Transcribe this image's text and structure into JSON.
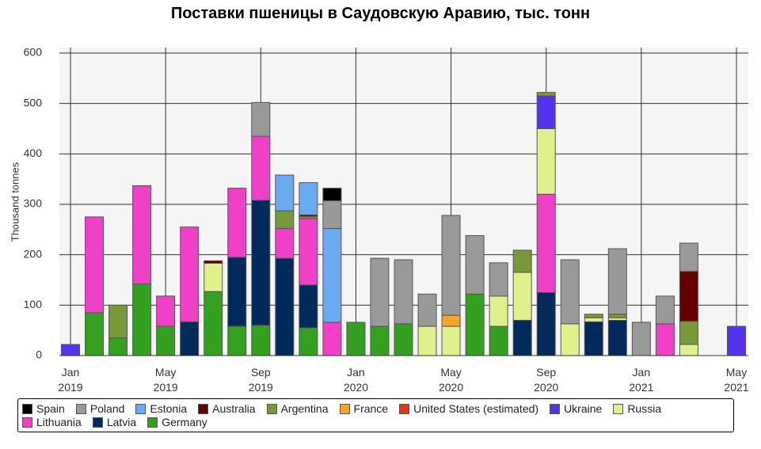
{
  "chart_data": {
    "type": "bar",
    "stacked": true,
    "title": "Поставки пшеницы в Саудовскую Аравию, тыс. тонн",
    "y_label": "Thousand tonnes",
    "categories": [
      "Jan 2019",
      null,
      null,
      null,
      "May 2019",
      null,
      null,
      null,
      "Sep 2019",
      null,
      null,
      null,
      "Jan 2020",
      null,
      null,
      null,
      "May 2020",
      null,
      null,
      null,
      "Sep 2020",
      null,
      null,
      null,
      "Jan 2021",
      null,
      null,
      null,
      "May 2021"
    ],
    "ylim": [
      0,
      600
    ],
    "yticks": [
      0,
      100,
      200,
      300,
      400,
      500,
      600
    ],
    "grid": true,
    "legend": "bottom",
    "series": [
      {
        "name": "Spain",
        "color": "#000000",
        "values": [
          0,
          0,
          0,
          0,
          0,
          0,
          0,
          0,
          0,
          0,
          0,
          25,
          0,
          0,
          0,
          0,
          0,
          0,
          0,
          0,
          0,
          0,
          0,
          0,
          0,
          0,
          0,
          0,
          0
        ]
      },
      {
        "name": "Poland",
        "color": "#999999",
        "values": [
          0,
          0,
          0,
          0,
          0,
          0,
          0,
          0,
          67,
          0,
          0,
          55,
          0,
          135,
          127,
          64,
          198,
          116,
          66,
          0,
          0,
          127,
          0,
          130,
          66,
          55,
          56,
          0,
          0
        ]
      },
      {
        "name": "Estonia",
        "color": "#6aaaf0",
        "values": [
          0,
          0,
          0,
          0,
          0,
          0,
          0,
          0,
          0,
          71,
          64,
          186,
          0,
          0,
          0,
          0,
          0,
          0,
          0,
          0,
          0,
          0,
          0,
          0,
          0,
          0,
          0,
          0,
          0
        ]
      },
      {
        "name": "Australia",
        "color": "#660000",
        "values": [
          0,
          0,
          0,
          0,
          0,
          0,
          5,
          0,
          0,
          0,
          3,
          0,
          0,
          0,
          0,
          0,
          0,
          0,
          0,
          0,
          0,
          0,
          0,
          0,
          0,
          0,
          99,
          0,
          0
        ]
      },
      {
        "name": "Argentina",
        "color": "#77993a",
        "values": [
          0,
          0,
          65,
          0,
          0,
          0,
          0,
          0,
          0,
          35,
          4,
          0,
          0,
          0,
          0,
          0,
          0,
          0,
          0,
          44,
          7,
          0,
          7,
          7,
          0,
          0,
          46,
          0,
          0
        ]
      },
      {
        "name": "France",
        "color": "#f5a623",
        "values": [
          0,
          0,
          0,
          0,
          0,
          0,
          0,
          0,
          0,
          0,
          0,
          0,
          0,
          0,
          0,
          0,
          22,
          0,
          0,
          0,
          0,
          0,
          0,
          0,
          0,
          0,
          0,
          0,
          0
        ]
      },
      {
        "name": "United States (estimated)",
        "color": "#ee3311",
        "values": [
          0,
          0,
          0,
          0,
          0,
          0,
          0,
          0,
          0,
          0,
          0,
          0,
          0,
          0,
          0,
          0,
          0,
          0,
          0,
          0,
          0,
          0,
          0,
          0,
          0,
          0,
          0,
          0,
          0
        ]
      },
      {
        "name": "Ukraine",
        "color": "#5533ee",
        "values": [
          22,
          0,
          0,
          0,
          0,
          0,
          0,
          0,
          0,
          0,
          0,
          0,
          0,
          0,
          0,
          0,
          0,
          0,
          0,
          0,
          65,
          0,
          0,
          0,
          0,
          0,
          0,
          0,
          58
        ]
      },
      {
        "name": "Russia",
        "color": "#e0f08a",
        "values": [
          0,
          0,
          0,
          0,
          0,
          0,
          56,
          0,
          0,
          0,
          0,
          0,
          0,
          0,
          0,
          58,
          58,
          0,
          60,
          95,
          130,
          63,
          8,
          5,
          0,
          0,
          22,
          0,
          0
        ]
      },
      {
        "name": "Lithuania",
        "color": "#f040c8",
        "values": [
          0,
          190,
          0,
          195,
          60,
          188,
          0,
          137,
          127,
          59,
          132,
          66,
          0,
          0,
          0,
          0,
          0,
          0,
          0,
          0,
          195,
          0,
          0,
          0,
          0,
          63,
          0,
          0,
          0
        ]
      },
      {
        "name": "Latvia",
        "color": "#002a5c",
        "values": [
          0,
          0,
          0,
          0,
          0,
          67,
          0,
          137,
          248,
          193,
          85,
          0,
          0,
          0,
          0,
          0,
          0,
          0,
          0,
          70,
          125,
          0,
          67,
          70,
          0,
          0,
          0,
          0,
          0
        ]
      },
      {
        "name": "Germany",
        "color": "#33a020",
        "values": [
          0,
          85,
          35,
          142,
          58,
          0,
          127,
          58,
          60,
          0,
          55,
          0,
          66,
          58,
          63,
          0,
          0,
          122,
          58,
          0,
          0,
          0,
          0,
          0,
          0,
          0,
          0,
          0,
          0
        ]
      }
    ]
  }
}
